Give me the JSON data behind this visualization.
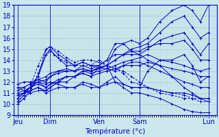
{
  "xlabel": "Température (°c)",
  "xlim": [
    0,
    100
  ],
  "ylim": [
    9,
    19
  ],
  "yticks": [
    9,
    10,
    11,
    12,
    13,
    14,
    15,
    16,
    17,
    18,
    19
  ],
  "xtick_positions": [
    2,
    18,
    42,
    62,
    96
  ],
  "xtick_labels": [
    "Jeu",
    "Dim",
    "Ven",
    "Sam",
    "Lun"
  ],
  "bg_color": "#cce8ec",
  "line_color": "#0000cc",
  "grid_color": "#aaccd4",
  "series": [
    [
      2,
      10.0,
      5,
      10.5,
      8,
      11.2,
      12,
      12.5,
      16,
      14.5,
      18,
      15.0,
      20,
      14.5,
      23,
      14.0,
      26,
      13.5,
      30,
      13.5,
      34,
      13.8,
      38,
      13.5,
      42,
      13.3,
      46,
      13.5,
      50,
      15.0,
      54,
      15.5,
      58,
      15.8,
      62,
      15.5,
      66,
      16.0,
      72,
      17.5,
      78,
      18.5,
      84,
      19.0,
      88,
      18.5,
      92,
      17.5,
      96,
      19.0
    ],
    [
      2,
      10.2,
      5,
      10.8,
      8,
      11.5,
      12,
      12.0,
      16,
      12.2,
      18,
      12.5,
      22,
      13.0,
      26,
      13.0,
      30,
      13.0,
      34,
      13.2,
      38,
      13.0,
      42,
      13.3,
      46,
      13.5,
      50,
      14.0,
      54,
      14.5,
      58,
      15.0,
      62,
      15.2,
      66,
      15.5,
      72,
      16.5,
      78,
      17.5,
      84,
      18.0,
      88,
      17.0,
      92,
      16.0,
      96,
      16.5
    ],
    [
      2,
      10.5,
      5,
      11.0,
      8,
      11.5,
      12,
      12.5,
      16,
      15.0,
      18,
      15.2,
      22,
      14.5,
      26,
      14.0,
      30,
      13.5,
      34,
      13.8,
      38,
      13.5,
      42,
      13.5,
      46,
      14.0,
      50,
      15.5,
      54,
      15.5,
      58,
      14.8,
      62,
      14.5,
      66,
      15.0,
      72,
      15.8,
      78,
      16.2,
      84,
      16.5,
      88,
      15.5,
      92,
      14.5,
      96,
      15.5
    ],
    [
      2,
      10.5,
      5,
      11.0,
      8,
      11.5,
      12,
      12.0,
      16,
      11.5,
      18,
      11.8,
      22,
      12.0,
      26,
      12.0,
      30,
      12.5,
      34,
      13.0,
      38,
      13.0,
      42,
      13.2,
      46,
      13.5,
      50,
      14.0,
      54,
      14.5,
      58,
      14.8,
      62,
      14.8,
      66,
      15.2,
      72,
      15.5,
      78,
      15.5,
      84,
      15.8,
      88,
      15.0,
      92,
      14.0,
      96,
      14.0
    ],
    [
      2,
      10.8,
      5,
      11.0,
      8,
      11.2,
      12,
      11.5,
      16,
      11.0,
      18,
      11.2,
      22,
      11.5,
      26,
      11.5,
      30,
      11.5,
      34,
      12.0,
      38,
      11.8,
      42,
      11.5,
      46,
      12.0,
      50,
      12.5,
      54,
      11.8,
      58,
      11.5,
      62,
      11.5,
      66,
      13.0,
      72,
      14.0,
      78,
      14.0,
      84,
      14.5,
      88,
      13.5,
      92,
      12.0,
      96,
      12.5
    ],
    [
      2,
      10.8,
      5,
      11.0,
      8,
      11.2,
      12,
      11.5,
      16,
      11.2,
      18,
      11.5,
      22,
      12.0,
      26,
      12.5,
      30,
      12.5,
      34,
      13.0,
      38,
      12.8,
      42,
      13.0,
      46,
      13.2,
      50,
      13.5,
      54,
      13.8,
      58,
      14.0,
      62,
      14.2,
      66,
      14.5,
      72,
      14.0,
      78,
      13.8,
      84,
      13.5,
      88,
      13.2,
      92,
      13.0,
      96,
      13.2
    ],
    [
      2,
      11.0,
      5,
      11.2,
      8,
      11.5,
      12,
      11.8,
      16,
      11.5,
      18,
      11.8,
      22,
      12.2,
      26,
      12.5,
      30,
      12.5,
      34,
      12.8,
      38,
      12.5,
      42,
      12.8,
      46,
      13.0,
      50,
      13.2,
      54,
      13.5,
      58,
      13.5,
      62,
      13.5,
      66,
      13.8,
      72,
      13.5,
      78,
      13.2,
      84,
      13.0,
      88,
      12.8,
      92,
      12.5,
      96,
      12.5
    ],
    [
      2,
      11.2,
      5,
      11.5,
      8,
      11.8,
      12,
      12.2,
      16,
      12.5,
      18,
      12.8,
      22,
      13.0,
      26,
      13.2,
      30,
      13.0,
      34,
      13.2,
      38,
      13.0,
      42,
      13.3,
      46,
      13.2,
      50,
      13.0,
      54,
      13.5,
      58,
      13.8,
      62,
      13.8,
      66,
      13.5,
      72,
      13.0,
      78,
      12.5,
      84,
      12.0,
      88,
      11.8,
      92,
      11.5,
      96,
      11.5
    ],
    [
      2,
      11.5,
      5,
      11.5,
      8,
      11.8,
      12,
      12.0,
      16,
      11.8,
      18,
      12.0,
      22,
      11.8,
      26,
      11.5,
      30,
      11.5,
      34,
      11.8,
      38,
      11.5,
      42,
      11.5,
      46,
      11.8,
      50,
      12.0,
      54,
      11.8,
      58,
      11.5,
      62,
      11.5,
      66,
      11.5,
      72,
      11.2,
      78,
      11.0,
      84,
      11.0,
      88,
      10.8,
      92,
      10.5,
      96,
      10.5
    ],
    [
      2,
      11.8,
      5,
      12.0,
      8,
      12.0,
      12,
      12.2,
      16,
      12.0,
      18,
      12.5,
      22,
      12.8,
      26,
      13.0,
      30,
      13.0,
      34,
      13.5,
      38,
      13.2,
      42,
      13.5,
      46,
      14.0,
      50,
      14.5,
      54,
      14.5,
      58,
      14.5,
      62,
      14.5,
      66,
      14.0,
      72,
      13.5,
      78,
      12.5,
      84,
      11.5,
      88,
      11.0,
      92,
      10.5,
      96,
      10.2
    ],
    [
      2,
      11.5,
      5,
      11.2,
      8,
      11.0,
      12,
      11.2,
      16,
      11.2,
      18,
      11.5,
      22,
      12.0,
      26,
      12.5,
      30,
      12.5,
      34,
      12.8,
      38,
      12.5,
      42,
      13.3,
      46,
      13.5,
      50,
      12.0,
      54,
      11.5,
      58,
      11.0,
      62,
      11.0,
      66,
      10.8,
      72,
      10.5,
      78,
      10.0,
      84,
      9.5,
      88,
      9.3,
      92,
      9.2,
      96,
      9.2
    ]
  ],
  "dashed_series": [
    [
      2,
      10.0,
      5,
      10.5,
      8,
      11.0,
      12,
      12.8,
      16,
      14.5,
      18,
      14.8,
      22,
      14.2,
      26,
      13.8,
      30,
      13.5,
      34,
      13.5,
      38,
      13.5,
      42,
      14.0,
      46,
      13.5,
      50,
      13.2,
      54,
      13.0,
      58,
      12.5,
      62,
      12.0,
      66,
      11.5,
      72,
      11.0,
      78,
      10.8,
      84,
      10.5,
      88,
      10.5,
      92,
      10.5,
      96,
      10.5
    ],
    [
      2,
      10.2,
      5,
      10.8,
      8,
      11.5,
      12,
      13.5,
      16,
      15.0,
      18,
      15.2,
      22,
      14.8,
      26,
      14.2,
      30,
      13.8,
      34,
      14.0,
      38,
      14.0,
      42,
      13.8,
      46,
      13.5,
      50,
      13.2,
      54,
      12.8,
      58,
      12.0,
      62,
      11.8,
      66,
      11.5,
      72,
      11.2,
      78,
      11.0,
      84,
      10.8,
      88,
      10.5,
      92,
      10.2,
      96,
      10.2
    ]
  ],
  "vlines": [
    2,
    18,
    42,
    62,
    96
  ]
}
